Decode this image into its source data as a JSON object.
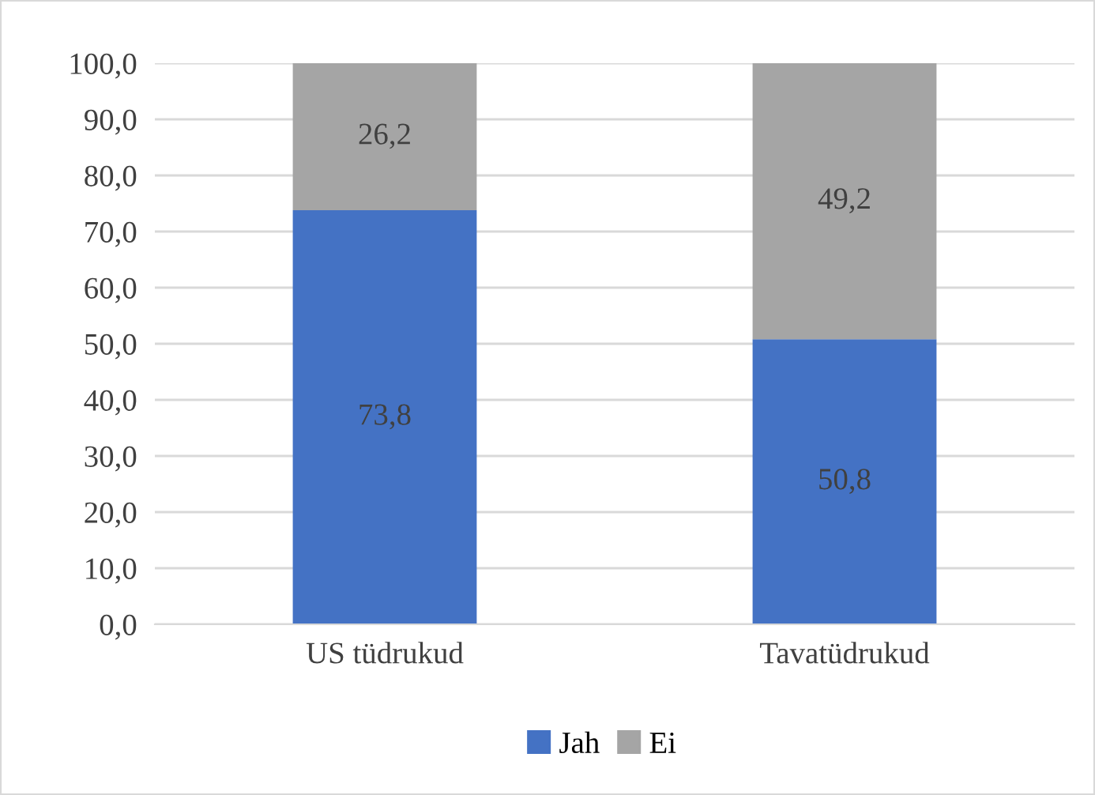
{
  "chart_data": {
    "type": "bar",
    "stacked": true,
    "categories": [
      "US tüdrukud",
      "Tavatüdrukud"
    ],
    "series": [
      {
        "name": "Jah",
        "color": "#4472c4",
        "values": [
          73.8,
          50.8
        ],
        "value_labels": [
          "73,8",
          "50,8"
        ]
      },
      {
        "name": "Ei",
        "color": "#a5a5a5",
        "values": [
          26.2,
          49.2
        ],
        "value_labels": [
          "26,2",
          "49,2"
        ]
      }
    ],
    "ylim": [
      0,
      100
    ],
    "yticks": [
      {
        "value": 0,
        "label": "0,0"
      },
      {
        "value": 10,
        "label": "10,0"
      },
      {
        "value": 20,
        "label": "20,0"
      },
      {
        "value": 30,
        "label": "30,0"
      },
      {
        "value": 40,
        "label": "40,0"
      },
      {
        "value": 50,
        "label": "50,0"
      },
      {
        "value": 60,
        "label": "60,0"
      },
      {
        "value": 70,
        "label": "70,0"
      },
      {
        "value": 80,
        "label": "80,0"
      },
      {
        "value": 90,
        "label": "90,0"
      },
      {
        "value": 100,
        "label": "100,0"
      }
    ],
    "grid": "y",
    "legend": "bottom"
  }
}
